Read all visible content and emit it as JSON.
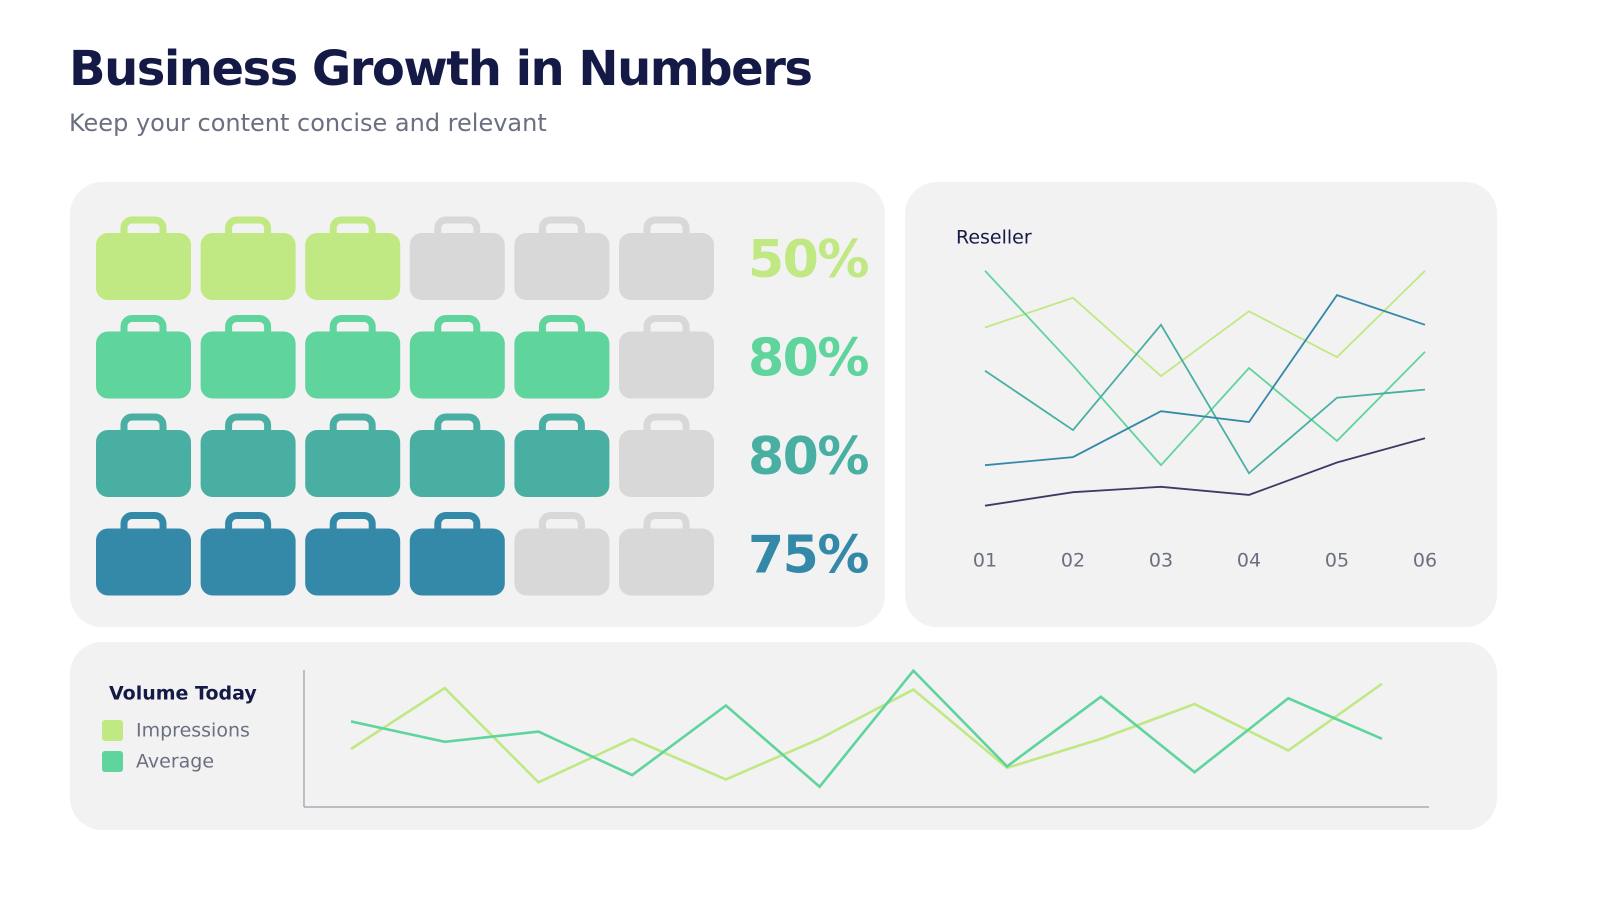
{
  "title": "Business Growth in Numbers",
  "subtitle": "Keep your content concise and relevant",
  "chart_data": [
    {
      "type": "pictograph",
      "values": [
        50,
        80,
        80,
        75
      ],
      "value_labels": [
        "50%",
        "80%",
        "80%",
        "75%"
      ],
      "filled": [
        3,
        5,
        5,
        4
      ],
      "icons_per_row": 6,
      "colors": [
        "#c0e883",
        "#5fd49c",
        "#4aafa3",
        "#3589a8"
      ],
      "empty_color": "#d8d8d8"
    },
    {
      "type": "line",
      "title": "Reseller",
      "categories": [
        "01",
        "02",
        "03",
        "04",
        "05",
        "06"
      ],
      "ylim": [
        0,
        100
      ],
      "series": [
        {
          "color": "#c0e883",
          "values": [
            75,
            86,
            57,
            81,
            64,
            96
          ]
        },
        {
          "color": "#5fd49c",
          "values": [
            96,
            61,
            24,
            60,
            33,
            66
          ]
        },
        {
          "color": "#4aafa3",
          "values": [
            59,
            37,
            76,
            21,
            49,
            52
          ]
        },
        {
          "color": "#3589a8",
          "values": [
            24,
            27,
            44,
            40,
            87,
            76
          ]
        },
        {
          "color": "#3d3a66",
          "values": [
            9,
            14,
            16,
            13,
            25,
            34
          ]
        }
      ]
    },
    {
      "type": "line",
      "title": "Volume Today",
      "categories": [
        null,
        null,
        null,
        null,
        null,
        null,
        null,
        null,
        null,
        null,
        null,
        null
      ],
      "ylim": [
        0,
        100
      ],
      "series": [
        {
          "name": "Impressions",
          "color": "#c0e883",
          "values": [
            40,
            82,
            17,
            47,
            19,
            47,
            81,
            27,
            47,
            71,
            39,
            85
          ]
        },
        {
          "name": "Average",
          "color": "#5fd49c",
          "values": [
            59,
            45,
            52,
            22,
            70,
            14,
            94,
            28,
            76,
            24,
            75,
            47
          ]
        }
      ]
    }
  ]
}
